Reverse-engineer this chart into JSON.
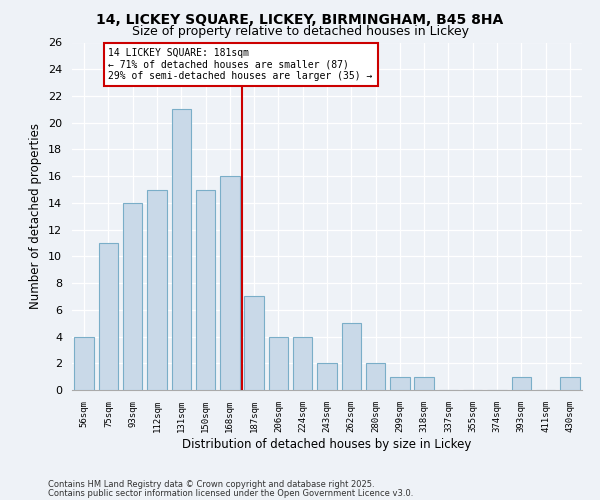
{
  "title1": "14, LICKEY SQUARE, LICKEY, BIRMINGHAM, B45 8HA",
  "title2": "Size of property relative to detached houses in Lickey",
  "xlabel": "Distribution of detached houses by size in Lickey",
  "ylabel": "Number of detached properties",
  "bins": [
    "56sqm",
    "75sqm",
    "93sqm",
    "112sqm",
    "131sqm",
    "150sqm",
    "168sqm",
    "187sqm",
    "206sqm",
    "224sqm",
    "243sqm",
    "262sqm",
    "280sqm",
    "299sqm",
    "318sqm",
    "337sqm",
    "355sqm",
    "374sqm",
    "393sqm",
    "411sqm",
    "430sqm"
  ],
  "counts": [
    4,
    11,
    14,
    15,
    21,
    15,
    16,
    7,
    4,
    4,
    2,
    5,
    2,
    1,
    1,
    0,
    0,
    0,
    1,
    0,
    1
  ],
  "bar_color": "#c9d9e8",
  "bar_edge_color": "#7aaec8",
  "vline_color": "#cc0000",
  "annotation_title": "14 LICKEY SQUARE: 181sqm",
  "annotation_line1": "← 71% of detached houses are smaller (87)",
  "annotation_line2": "29% of semi-detached houses are larger (35) →",
  "annotation_box_color": "#ffffff",
  "annotation_box_edge": "#cc0000",
  "ylim": [
    0,
    26
  ],
  "yticks": [
    0,
    2,
    4,
    6,
    8,
    10,
    12,
    14,
    16,
    18,
    20,
    22,
    24,
    26
  ],
  "footer1": "Contains HM Land Registry data © Crown copyright and database right 2025.",
  "footer2": "Contains public sector information licensed under the Open Government Licence v3.0.",
  "bg_color": "#eef2f7"
}
